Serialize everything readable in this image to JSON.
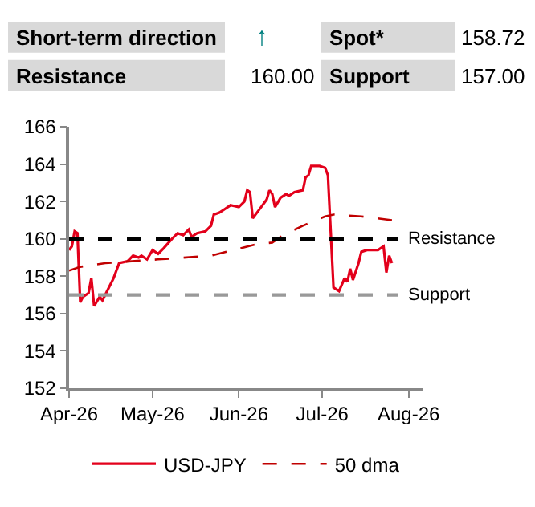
{
  "chart_data": {
    "type": "line",
    "annotations": [
      "Short-term direction",
      "↑",
      "Spot*",
      "158.72",
      "Resistance",
      "160.00",
      "Support",
      "157.00"
    ],
    "series": [
      {
        "name": "USD-JPY",
        "color": "#e3001b",
        "line_style": "solid",
        "x": [
          "2026-04-01",
          "2026-04-02",
          "2026-04-03",
          "2026-04-04",
          "2026-04-05",
          "2026-04-06",
          "2026-04-08",
          "2026-04-09",
          "2026-04-10",
          "2026-04-12",
          "2026-04-13",
          "2026-04-15",
          "2026-04-17",
          "2026-04-19",
          "2026-04-22",
          "2026-04-24",
          "2026-04-26",
          "2026-04-27",
          "2026-04-29",
          "2026-05-01",
          "2026-05-03",
          "2026-05-05",
          "2026-05-08",
          "2026-05-10",
          "2026-05-12",
          "2026-05-14",
          "2026-05-15",
          "2026-05-17",
          "2026-05-20",
          "2026-05-22",
          "2026-05-23",
          "2026-05-25",
          "2026-05-27",
          "2026-05-29",
          "2026-06-01",
          "2026-06-03",
          "2026-06-04",
          "2026-06-05",
          "2026-06-06",
          "2026-06-09",
          "2026-06-11",
          "2026-06-12",
          "2026-06-13",
          "2026-06-14",
          "2026-06-16",
          "2026-06-18",
          "2026-06-19",
          "2026-06-21",
          "2026-06-24",
          "2026-06-25",
          "2026-06-26",
          "2026-06-27",
          "2026-06-30",
          "2026-07-02",
          "2026-07-03",
          "2026-07-05",
          "2026-07-07",
          "2026-07-09",
          "2026-07-10",
          "2026-07-11",
          "2026-07-12",
          "2026-07-14",
          "2026-07-15",
          "2026-07-17",
          "2026-07-19",
          "2026-07-21",
          "2026-07-23",
          "2026-07-24",
          "2026-07-25",
          "2026-07-26"
        ],
        "values": [
          159.4,
          159.6,
          160.4,
          160.3,
          156.6,
          156.9,
          157.1,
          157.9,
          156.4,
          156.9,
          156.7,
          157.3,
          157.9,
          158.7,
          158.8,
          159.1,
          159.0,
          159.1,
          158.9,
          159.4,
          159.2,
          159.5,
          160.0,
          160.3,
          160.2,
          160.5,
          160.1,
          160.3,
          160.4,
          160.7,
          161.3,
          161.4,
          161.6,
          161.8,
          161.7,
          162.0,
          162.6,
          162.5,
          161.1,
          161.7,
          162.1,
          162.6,
          162.4,
          161.7,
          162.2,
          162.4,
          162.3,
          162.5,
          162.6,
          163.3,
          163.4,
          163.9,
          163.9,
          163.8,
          163.4,
          157.4,
          157.2,
          157.9,
          157.7,
          158.4,
          157.8,
          158.7,
          159.3,
          159.4,
          159.4,
          159.4,
          159.6,
          158.2,
          159.1,
          158.7
        ]
      },
      {
        "name": "50 dma",
        "color": "#c00000",
        "line_style": "dashed",
        "x": [
          "2026-04-01",
          "2026-04-05",
          "2026-04-14",
          "2026-05-03",
          "2026-05-22",
          "2026-06-07",
          "2026-06-13",
          "2026-06-17",
          "2026-06-24",
          "2026-07-02",
          "2026-07-05",
          "2026-07-15",
          "2026-07-26"
        ],
        "values": [
          158.3,
          158.5,
          158.7,
          158.9,
          159.1,
          159.7,
          159.8,
          160.2,
          160.7,
          161.2,
          161.3,
          161.2,
          161.0
        ]
      }
    ],
    "ref_lines": [
      {
        "axis": "y",
        "value": 160,
        "label": "Resistance",
        "color": "#000000",
        "line_style": "dashed"
      },
      {
        "axis": "y",
        "value": 157,
        "label": "Support",
        "color": "#999999",
        "line_style": "dashed"
      }
    ],
    "xlim": [
      "2026-04-01",
      "2026-08-06"
    ],
    "xticks": [
      {
        "value": "2026-04-01",
        "label": "Apr-26"
      },
      {
        "value": "2026-05-01",
        "label": "May-26"
      },
      {
        "value": "2026-06-01",
        "label": "Jun-26"
      },
      {
        "value": "2026-07-01",
        "label": "Jul-26"
      },
      {
        "value": "2026-08-01",
        "label": "Aug-26"
      }
    ],
    "ylim": [
      152,
      166
    ],
    "yticks": [
      152,
      154,
      156,
      158,
      160,
      162,
      164,
      166
    ],
    "legend": "bottom",
    "marker": "none"
  }
}
